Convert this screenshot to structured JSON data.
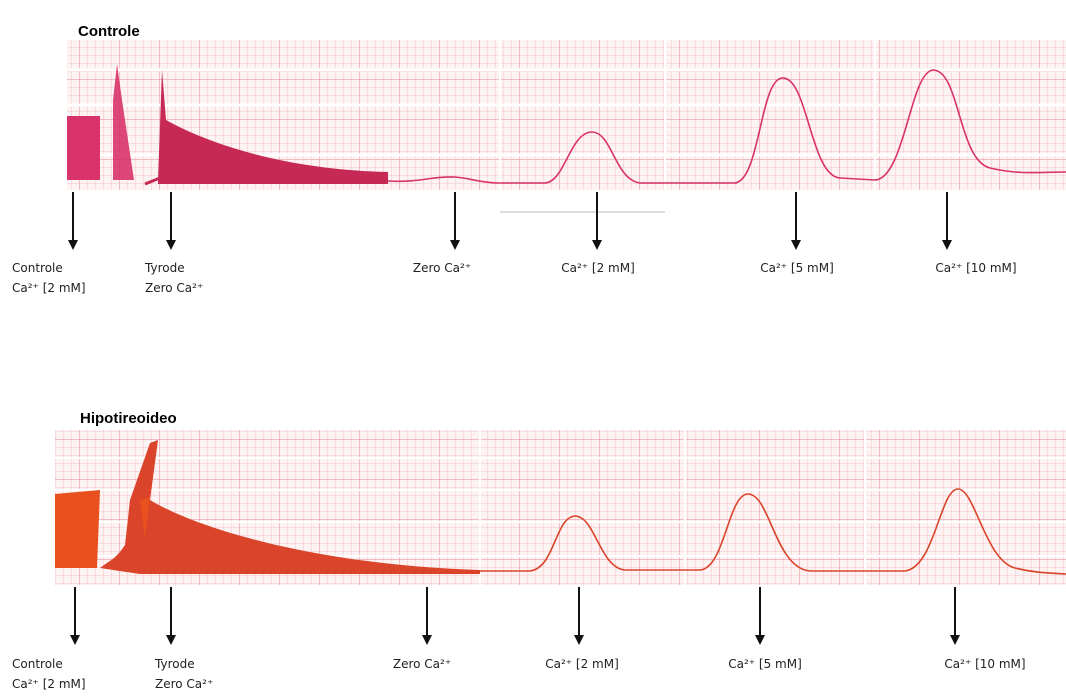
{
  "panels": [
    {
      "title": "Controle",
      "labels": [
        [
          "Controle",
          "Ca²⁺ [2 mM]"
        ],
        [
          "Tyrode",
          "Zero Ca²⁺"
        ],
        [
          "Zero Ca²⁺"
        ],
        [
          "Ca²⁺ [2 mM]"
        ],
        [
          "Ca²⁺ [5 mM]"
        ],
        [
          "Ca²⁺ [10 mM]"
        ]
      ]
    },
    {
      "title": "Hipotireoideo",
      "labels": [
        [
          "Controle",
          "Ca²⁺ [2 mM]"
        ],
        [
          "Tyrode",
          "Zero Ca²⁺"
        ],
        [
          "Zero Ca²⁺"
        ],
        [
          "Ca²⁺ [2 mM]"
        ],
        [
          "Ca²⁺ [5 mM]"
        ],
        [
          "Ca²⁺ [10 mM]"
        ]
      ]
    }
  ]
}
